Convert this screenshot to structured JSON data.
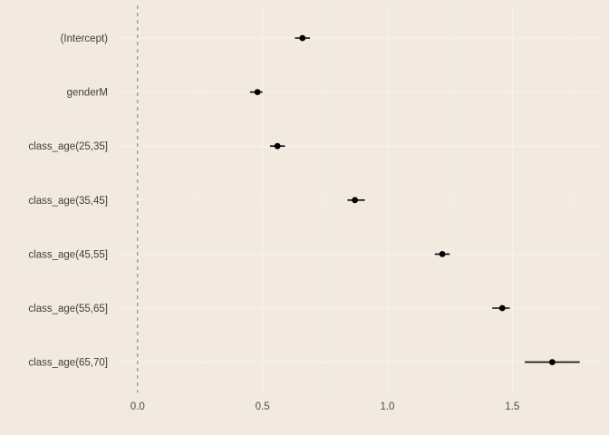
{
  "chart_data": {
    "type": "scatter",
    "subtype": "coefficient-dot-whisker",
    "title": "",
    "xlabel": "",
    "ylabel": "",
    "categories": [
      "(Intercept)",
      "genderM",
      "class_age(25,35]",
      "class_age(35,45]",
      "class_age(45,55]",
      "class_age(55,65]",
      "class_age(65,70]"
    ],
    "series": [
      {
        "name": "estimate",
        "values": [
          0.66,
          0.48,
          0.56,
          0.87,
          1.22,
          1.46,
          1.66
        ],
        "ci_lower": [
          0.63,
          0.45,
          0.53,
          0.84,
          1.19,
          1.42,
          1.55
        ],
        "ci_upper": [
          0.69,
          0.5,
          0.59,
          0.91,
          1.25,
          1.49,
          1.77
        ]
      }
    ],
    "x_tick_labels": [
      "0.0",
      "0.5",
      "1.0",
      "1.5"
    ],
    "x_tick_values": [
      0.0,
      0.5,
      1.0,
      1.5
    ],
    "xlim": [
      -0.09,
      1.86
    ],
    "minor_grid_step": 0.25,
    "reference_line_x": 0.0,
    "grid": "on",
    "legend": "none"
  },
  "colors": {
    "background": "#f2e9e0",
    "grid_major": "#f9f3ec",
    "grid_minor": "#f7f0e8",
    "reference_line": "#787878",
    "point": "#000000",
    "whisker": "#0d0d0d",
    "category_label_text": "#3f3f3f",
    "tick_label_text": "#4e4e4e"
  }
}
